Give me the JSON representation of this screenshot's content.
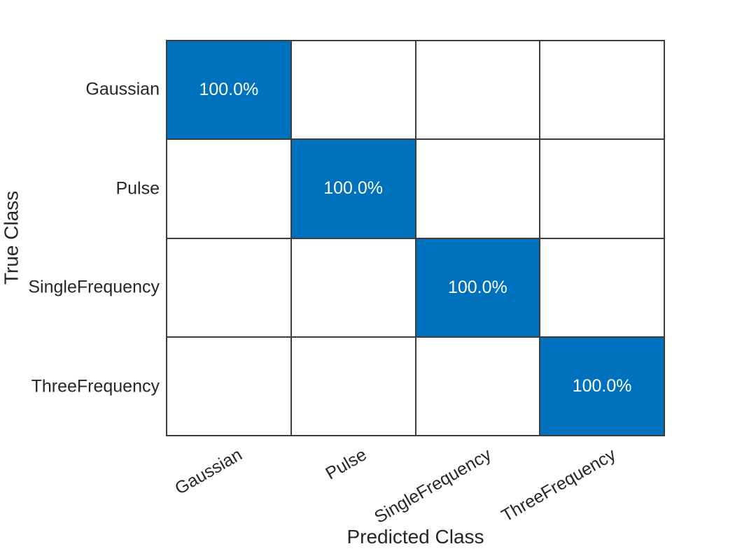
{
  "chart_data": {
    "type": "heatmap",
    "subtype": "confusion-matrix",
    "xlabel": "Predicted Class",
    "ylabel": "True Class",
    "classes": [
      "Gaussian",
      "Pulse",
      "SingleFrequency",
      "ThreeFrequency"
    ],
    "matrix_percent": [
      [
        100.0,
        0,
        0,
        0
      ],
      [
        0,
        100.0,
        0,
        0
      ],
      [
        0,
        0,
        100.0,
        0
      ],
      [
        0,
        0,
        0,
        100.0
      ]
    ],
    "cell_labels": [
      [
        "100.0%",
        "",
        "",
        ""
      ],
      [
        "",
        "100.0%",
        "",
        ""
      ],
      [
        "",
        "",
        "100.0%",
        ""
      ],
      [
        "",
        "",
        "",
        "100.0%"
      ]
    ],
    "layout": {
      "grid_on": true,
      "x_tick_rotation_deg": -30,
      "legend": "none"
    },
    "colors": {
      "diagonal": "#0072BD",
      "off_diagonal": "#FFFFFF",
      "grid_line": "#3D3D3D",
      "tick_text": "#262626",
      "cell_text": "#FFFFFF"
    }
  }
}
